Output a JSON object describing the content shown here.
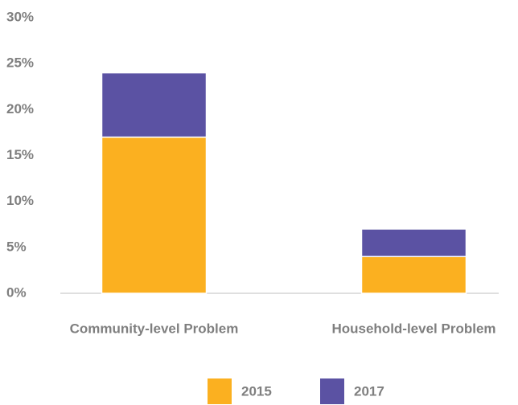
{
  "chart_data": {
    "type": "stacked_bar",
    "categories": [
      "Community-level Problem",
      "Household-level Problem"
    ],
    "series": [
      {
        "name": "2015",
        "color": "#fbb020",
        "values": [
          17,
          4
        ]
      },
      {
        "name": "2017",
        "color": "#5b52a3",
        "values": [
          7,
          3
        ]
      }
    ],
    "ylim": [
      0,
      30
    ],
    "yticks": [
      {
        "value": 0,
        "label": "0%"
      },
      {
        "value": 5,
        "label": "5%"
      },
      {
        "value": 10,
        "label": "10%"
      },
      {
        "value": 15,
        "label": "15%"
      },
      {
        "value": 20,
        "label": "20%"
      },
      {
        "value": 25,
        "label": "25%"
      },
      {
        "value": 30,
        "label": "30%"
      }
    ],
    "legend": "bottom"
  }
}
